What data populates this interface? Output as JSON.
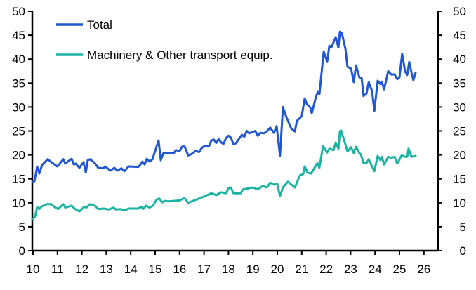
{
  "chart_data": {
    "type": "line",
    "title": "",
    "xlabel": "",
    "ylabel": "",
    "xlim": [
      10,
      26
    ],
    "ylim": [
      0,
      50
    ],
    "x_ticks": [
      "10",
      "11",
      "12",
      "13",
      "14",
      "15",
      "16",
      "17",
      "18",
      "19",
      "20",
      "21",
      "22",
      "23",
      "24",
      "25",
      "26"
    ],
    "y_ticks_left": [
      "0",
      "5",
      "10",
      "15",
      "20",
      "25",
      "30",
      "35",
      "40",
      "45",
      "50"
    ],
    "y_ticks_right": [
      "0",
      "5",
      "10",
      "15",
      "20",
      "25",
      "30",
      "35",
      "40",
      "45",
      "50"
    ],
    "grid": false,
    "legend_placement": "top-left",
    "series": [
      {
        "name": "Total",
        "color": "#2157cf",
        "points": [
          [
            10.0,
            14.3
          ],
          [
            10.06,
            14.5
          ],
          [
            10.17,
            17.6
          ],
          [
            10.26,
            16.1
          ],
          [
            10.37,
            17.9
          ],
          [
            10.6,
            19.1
          ],
          [
            10.8,
            18.3
          ],
          [
            11.0,
            17.6
          ],
          [
            11.24,
            19.1
          ],
          [
            11.32,
            18.2
          ],
          [
            11.47,
            18.8
          ],
          [
            11.58,
            19.2
          ],
          [
            11.67,
            18.0
          ],
          [
            11.75,
            18.2
          ],
          [
            11.9,
            17.3
          ],
          [
            12.07,
            18.5
          ],
          [
            12.16,
            16.3
          ],
          [
            12.24,
            18.9
          ],
          [
            12.33,
            19.1
          ],
          [
            12.53,
            18.3
          ],
          [
            12.67,
            17.3
          ],
          [
            12.87,
            17.2
          ],
          [
            12.96,
            17.6
          ],
          [
            13.16,
            16.7
          ],
          [
            13.33,
            17.3
          ],
          [
            13.45,
            16.7
          ],
          [
            13.62,
            17.2
          ],
          [
            13.74,
            16.6
          ],
          [
            13.91,
            17.6
          ],
          [
            14.31,
            17.5
          ],
          [
            14.4,
            18.0
          ],
          [
            14.48,
            18.6
          ],
          [
            14.57,
            18.0
          ],
          [
            14.66,
            19.2
          ],
          [
            14.77,
            18.6
          ],
          [
            14.89,
            19.1
          ],
          [
            15.14,
            23.0
          ],
          [
            15.23,
            18.9
          ],
          [
            15.34,
            20.4
          ],
          [
            15.52,
            20.4
          ],
          [
            15.75,
            20.3
          ],
          [
            15.85,
            21.0
          ],
          [
            16.0,
            20.8
          ],
          [
            16.1,
            21.7
          ],
          [
            16.2,
            21.8
          ],
          [
            16.35,
            19.9
          ],
          [
            16.5,
            20.2
          ],
          [
            16.65,
            20.8
          ],
          [
            16.8,
            20.6
          ],
          [
            16.9,
            21.4
          ],
          [
            17.0,
            21.8
          ],
          [
            17.2,
            21.8
          ],
          [
            17.3,
            23.0
          ],
          [
            17.4,
            23.2
          ],
          [
            17.5,
            22.5
          ],
          [
            17.6,
            23.3
          ],
          [
            17.7,
            22.6
          ],
          [
            17.8,
            22.3
          ],
          [
            17.9,
            23.5
          ],
          [
            18.0,
            24.0
          ],
          [
            18.1,
            23.6
          ],
          [
            18.2,
            22.3
          ],
          [
            18.3,
            22.4
          ],
          [
            18.45,
            23.5
          ],
          [
            18.55,
            24.2
          ],
          [
            18.65,
            23.8
          ],
          [
            18.75,
            25.0
          ],
          [
            18.85,
            24.5
          ],
          [
            19.0,
            24.8
          ],
          [
            19.1,
            25.0
          ],
          [
            19.2,
            24.0
          ],
          [
            19.3,
            24.6
          ],
          [
            19.45,
            24.5
          ],
          [
            19.57,
            24.9
          ],
          [
            19.71,
            25.7
          ],
          [
            19.86,
            24.6
          ],
          [
            19.97,
            26.0
          ],
          [
            20.11,
            19.8
          ],
          [
            20.23,
            30.0
          ],
          [
            20.37,
            27.9
          ],
          [
            20.57,
            25.5
          ],
          [
            20.72,
            24.9
          ],
          [
            20.8,
            27.1
          ],
          [
            21.0,
            28.1
          ],
          [
            21.12,
            31.8
          ],
          [
            21.21,
            30.6
          ],
          [
            21.35,
            29.9
          ],
          [
            21.41,
            28.7
          ],
          [
            21.58,
            32.1
          ],
          [
            21.67,
            33.3
          ],
          [
            21.72,
            32.6
          ],
          [
            21.9,
            41.6
          ],
          [
            22.04,
            39.4
          ],
          [
            22.13,
            42.8
          ],
          [
            22.21,
            42.4
          ],
          [
            22.39,
            44.6
          ],
          [
            22.5,
            42.4
          ],
          [
            22.56,
            45.7
          ],
          [
            22.64,
            45.5
          ],
          [
            22.79,
            42.1
          ],
          [
            22.87,
            38.4
          ],
          [
            23.02,
            38.0
          ],
          [
            23.13,
            35.2
          ],
          [
            23.22,
            38.7
          ],
          [
            23.36,
            36.2
          ],
          [
            23.45,
            36.1
          ],
          [
            23.53,
            32.3
          ],
          [
            23.65,
            32.8
          ],
          [
            23.74,
            35.2
          ],
          [
            23.88,
            33.3
          ],
          [
            23.97,
            29.2
          ],
          [
            24.11,
            35.5
          ],
          [
            24.22,
            34.8
          ],
          [
            24.28,
            35.3
          ],
          [
            24.37,
            33.7
          ],
          [
            24.54,
            37.5
          ],
          [
            24.66,
            36.8
          ],
          [
            24.8,
            36.8
          ],
          [
            24.91,
            35.8
          ],
          [
            25.0,
            36.2
          ],
          [
            25.11,
            41.1
          ],
          [
            25.23,
            37.4
          ],
          [
            25.32,
            36.7
          ],
          [
            25.4,
            39.4
          ],
          [
            25.49,
            37.2
          ],
          [
            25.57,
            35.6
          ],
          [
            25.66,
            37.2
          ]
        ]
      },
      {
        "name": "Machinery & Other transport equip.",
        "color": "#1bb3a1",
        "points": [
          [
            10.0,
            6.6
          ],
          [
            10.09,
            7.2
          ],
          [
            10.17,
            9.1
          ],
          [
            10.26,
            8.7
          ],
          [
            10.34,
            9.2
          ],
          [
            10.57,
            9.7
          ],
          [
            10.75,
            9.7
          ],
          [
            10.89,
            9.1
          ],
          [
            11.03,
            8.7
          ],
          [
            11.24,
            9.7
          ],
          [
            11.32,
            9.0
          ],
          [
            11.58,
            9.4
          ],
          [
            11.72,
            8.7
          ],
          [
            11.9,
            8.2
          ],
          [
            12.1,
            9.2
          ],
          [
            12.18,
            9.0
          ],
          [
            12.33,
            9.7
          ],
          [
            12.53,
            9.4
          ],
          [
            12.67,
            8.7
          ],
          [
            12.9,
            8.8
          ],
          [
            13.1,
            8.6
          ],
          [
            13.3,
            9.0
          ],
          [
            13.39,
            8.6
          ],
          [
            13.59,
            8.7
          ],
          [
            13.76,
            8.4
          ],
          [
            13.91,
            8.8
          ],
          [
            14.31,
            8.8
          ],
          [
            14.43,
            9.2
          ],
          [
            14.51,
            8.7
          ],
          [
            14.63,
            9.4
          ],
          [
            14.77,
            9.0
          ],
          [
            14.91,
            9.4
          ],
          [
            15.06,
            10.7
          ],
          [
            15.17,
            10.9
          ],
          [
            15.29,
            10.1
          ],
          [
            15.4,
            10.4
          ],
          [
            15.55,
            10.3
          ],
          [
            16.0,
            10.5
          ],
          [
            16.2,
            11.0
          ],
          [
            16.35,
            10.0
          ],
          [
            16.6,
            10.5
          ],
          [
            17.0,
            11.3
          ],
          [
            17.3,
            12.0
          ],
          [
            17.5,
            11.6
          ],
          [
            17.7,
            12.2
          ],
          [
            17.9,
            12.0
          ],
          [
            18.0,
            13.0
          ],
          [
            18.1,
            13.2
          ],
          [
            18.2,
            12.0
          ],
          [
            18.5,
            12.0
          ],
          [
            18.6,
            12.8
          ],
          [
            18.8,
            13.0
          ],
          [
            19.0,
            13.2
          ],
          [
            19.2,
            12.8
          ],
          [
            19.4,
            13.5
          ],
          [
            19.57,
            13.2
          ],
          [
            19.71,
            14.2
          ],
          [
            19.86,
            13.8
          ],
          [
            20.0,
            13.9
          ],
          [
            20.11,
            11.4
          ],
          [
            20.23,
            13.2
          ],
          [
            20.43,
            14.4
          ],
          [
            20.72,
            13.2
          ],
          [
            20.92,
            15.7
          ],
          [
            21.06,
            16.0
          ],
          [
            21.12,
            17.6
          ],
          [
            21.24,
            16.3
          ],
          [
            21.38,
            16.1
          ],
          [
            21.64,
            18.3
          ],
          [
            21.72,
            17.3
          ],
          [
            21.87,
            21.8
          ],
          [
            22.04,
            20.5
          ],
          [
            22.13,
            21.3
          ],
          [
            22.3,
            21.0
          ],
          [
            22.39,
            22.6
          ],
          [
            22.5,
            21.3
          ],
          [
            22.56,
            24.9
          ],
          [
            22.61,
            25.1
          ],
          [
            22.76,
            22.7
          ],
          [
            22.87,
            20.7
          ],
          [
            23.02,
            21.6
          ],
          [
            23.13,
            20.4
          ],
          [
            23.22,
            21.7
          ],
          [
            23.36,
            20.4
          ],
          [
            23.42,
            20.1
          ],
          [
            23.53,
            18.3
          ],
          [
            23.65,
            18.3
          ],
          [
            23.74,
            19.1
          ],
          [
            23.82,
            18.2
          ],
          [
            23.97,
            16.6
          ],
          [
            24.11,
            19.8
          ],
          [
            24.22,
            18.9
          ],
          [
            24.28,
            19.6
          ],
          [
            24.37,
            18.0
          ],
          [
            24.54,
            19.6
          ],
          [
            24.68,
            19.4
          ],
          [
            24.8,
            19.6
          ],
          [
            24.91,
            18.2
          ],
          [
            25.09,
            19.9
          ],
          [
            25.23,
            19.6
          ],
          [
            25.32,
            19.6
          ],
          [
            25.37,
            21.3
          ],
          [
            25.49,
            19.6
          ],
          [
            25.66,
            19.8
          ]
        ]
      }
    ]
  }
}
